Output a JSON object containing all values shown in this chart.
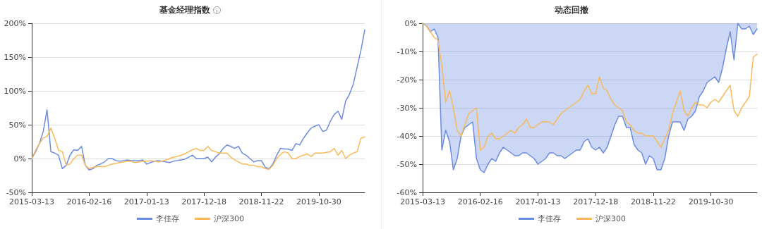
{
  "chart_data": [
    {
      "type": "line",
      "title": "基金经理指数",
      "categories": [
        "2015-03-13",
        null,
        null,
        null,
        null,
        null,
        null,
        null,
        null,
        null,
        null,
        null,
        null,
        null,
        null,
        "2016-02-16",
        null,
        null,
        null,
        null,
        null,
        null,
        null,
        null,
        null,
        null,
        null,
        null,
        null,
        null,
        "2017-01-13",
        null,
        null,
        null,
        null,
        null,
        null,
        null,
        null,
        null,
        null,
        null,
        null,
        null,
        null,
        "2017-12-18",
        null,
        null,
        null,
        null,
        null,
        null,
        null,
        null,
        null,
        null,
        null,
        null,
        null,
        null,
        "2018-11-22",
        null,
        null,
        null,
        null,
        null,
        null,
        null,
        null,
        null,
        null,
        null,
        null,
        null,
        null,
        "2019-10-30",
        null,
        null,
        null,
        null,
        null,
        null,
        null,
        null,
        null,
        null,
        null,
        null
      ],
      "series": [
        {
          "name": "李佳存",
          "color": "#6b8ce0",
          "values": [
            0,
            10,
            22,
            40,
            72,
            10,
            8,
            5,
            -15,
            -10,
            5,
            13,
            12,
            18,
            -10,
            -17,
            -15,
            -10,
            -8,
            -5,
            0,
            0,
            -3,
            -4,
            -3,
            -2,
            -3,
            -3,
            -3,
            -2,
            -8,
            -6,
            -4,
            -3,
            -4,
            -5,
            -6,
            -4,
            -3,
            -2,
            -1,
            2,
            5,
            0,
            0,
            0,
            2,
            -5,
            2,
            7,
            15,
            20,
            18,
            15,
            18,
            8,
            5,
            0,
            -5,
            -3,
            -3,
            -13,
            -15,
            -8,
            5,
            15,
            14,
            14,
            12,
            22,
            20,
            30,
            38,
            45,
            48,
            50,
            40,
            42,
            55,
            65,
            70,
            58,
            85,
            95,
            110,
            135,
            160,
            190
          ]
        },
        {
          "name": "沪深300",
          "color": "#f9b95a",
          "values": [
            0,
            12,
            22,
            30,
            33,
            45,
            30,
            12,
            10,
            -10,
            -8,
            0,
            5,
            5,
            -10,
            -15,
            -13,
            -12,
            -12,
            -12,
            -10,
            -8,
            -7,
            -6,
            -5,
            -4,
            -4,
            -6,
            -5,
            -4,
            -4,
            -3,
            -4,
            -5,
            -4,
            -2,
            0,
            2,
            3,
            5,
            7,
            10,
            13,
            15,
            12,
            12,
            18,
            12,
            10,
            8,
            8,
            8,
            2,
            -2,
            -5,
            -8,
            -8,
            -10,
            -10,
            -12,
            -12,
            -15,
            -16,
            -10,
            0,
            6,
            10,
            8,
            0,
            0,
            3,
            5,
            7,
            3,
            8,
            8,
            8,
            9,
            10,
            15,
            5,
            12,
            0,
            5,
            8,
            10,
            30,
            32
          ]
        }
      ],
      "ylim": [
        -50,
        200
      ],
      "yticks": [
        {
          "value": -50,
          "label": "-50%"
        },
        {
          "value": 0,
          "label": "0%"
        },
        {
          "value": 50,
          "label": "50%"
        },
        {
          "value": 100,
          "label": "100%"
        },
        {
          "value": 150,
          "label": "150%"
        },
        {
          "value": 200,
          "label": "200%"
        }
      ],
      "grid": "y",
      "legend": "bottom"
    },
    {
      "type": "line",
      "title": "动态回撤",
      "categories": [
        "2015-03-13",
        null,
        null,
        null,
        null,
        null,
        null,
        null,
        null,
        null,
        null,
        null,
        null,
        null,
        null,
        "2016-02-16",
        null,
        null,
        null,
        null,
        null,
        null,
        null,
        null,
        null,
        null,
        null,
        null,
        null,
        null,
        "2017-01-13",
        null,
        null,
        null,
        null,
        null,
        null,
        null,
        null,
        null,
        null,
        null,
        null,
        null,
        null,
        "2017-12-18",
        null,
        null,
        null,
        null,
        null,
        null,
        null,
        null,
        null,
        null,
        null,
        null,
        null,
        null,
        "2018-11-22",
        null,
        null,
        null,
        null,
        null,
        null,
        null,
        null,
        null,
        null,
        null,
        null,
        null,
        null,
        "2019-10-30",
        null,
        null,
        null,
        null,
        null,
        null,
        null,
        null,
        null,
        null,
        null,
        null
      ],
      "series": [
        {
          "name": "李佳存",
          "type": "area",
          "color": "#6b8ce0",
          "values": [
            0,
            -1,
            -3,
            -2,
            -5,
            -45,
            -38,
            -42,
            -52,
            -48,
            -40,
            -37,
            -36,
            -35,
            -48,
            -52,
            -53,
            -50,
            -48,
            -49,
            -46,
            -44,
            -45,
            -46,
            -47,
            -47,
            -46,
            -46,
            -47,
            -48,
            -50,
            -49,
            -48,
            -46,
            -46,
            -47,
            -47,
            -48,
            -47,
            -46,
            -45,
            -45,
            -42,
            -41,
            -44,
            -45,
            -44,
            -46,
            -44,
            -40,
            -36,
            -33,
            -33,
            -37,
            -37,
            -43,
            -45,
            -46,
            -50,
            -47,
            -48,
            -52,
            -52,
            -48,
            -40,
            -35,
            -35,
            -35,
            -38,
            -34,
            -33,
            -31,
            -26,
            -24,
            -21,
            -20,
            -19,
            -21,
            -16,
            -9,
            -3,
            -13,
            0,
            -2,
            -2,
            -1,
            -4,
            -2
          ]
        },
        {
          "name": "沪深300",
          "color": "#f9b95a",
          "values": [
            0,
            -1,
            -3,
            -5,
            -6,
            -15,
            -28,
            -24,
            -30,
            -38,
            -40,
            -36,
            -32,
            -31,
            -30,
            -45,
            -44,
            -40,
            -39,
            -41,
            -41,
            -40,
            -39,
            -38,
            -39,
            -37,
            -36,
            -34,
            -37,
            -37,
            -36,
            -35,
            -35,
            -35,
            -36,
            -34,
            -32,
            -31,
            -30,
            -29,
            -28,
            -27,
            -24,
            -22,
            -25,
            -25,
            -19,
            -23,
            -24,
            -27,
            -29,
            -30,
            -31,
            -35,
            -36,
            -38,
            -39,
            -39,
            -40,
            -40,
            -40,
            -42,
            -44,
            -41,
            -38,
            -32,
            -28,
            -24,
            -31,
            -33,
            -30,
            -28,
            -29,
            -29,
            -30,
            -28,
            -27,
            -28,
            -26,
            -24,
            -22,
            -31,
            -33,
            -30,
            -28,
            -26,
            -12,
            -11
          ]
        }
      ],
      "ylim": [
        -60,
        0
      ],
      "yticks": [
        {
          "value": -60,
          "label": "-60%"
        },
        {
          "value": -50,
          "label": "-50%"
        },
        {
          "value": -40,
          "label": "-40%"
        },
        {
          "value": -30,
          "label": "-30%"
        },
        {
          "value": -20,
          "label": "-20%"
        },
        {
          "value": -10,
          "label": "-10%"
        },
        {
          "value": 0,
          "label": "0%"
        }
      ],
      "grid": "y",
      "legend": "bottom"
    }
  ]
}
